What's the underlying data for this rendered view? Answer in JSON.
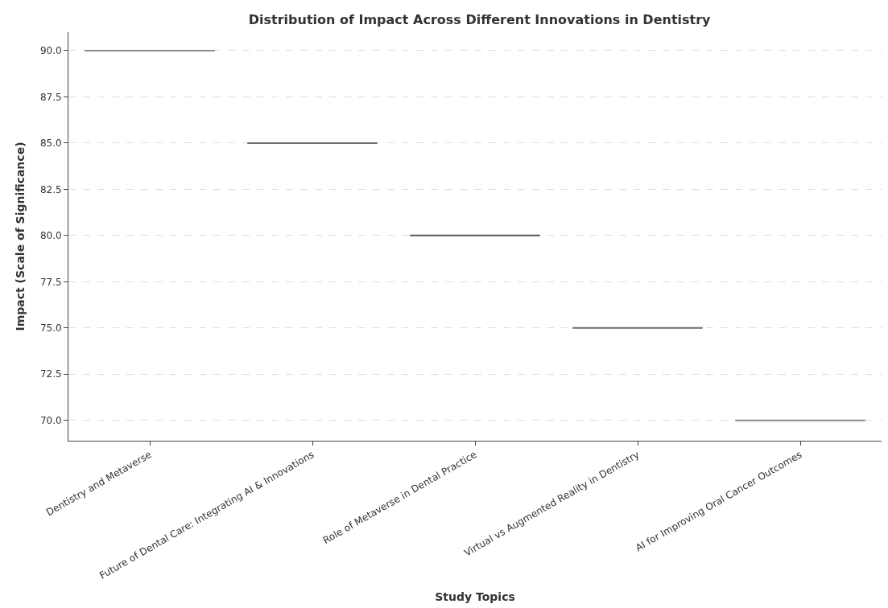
{
  "chart_data": {
    "type": "box",
    "title": "Distribution of Impact Across Different Innovations in Dentistry",
    "xlabel": "Study Topics",
    "ylabel": "Impact (Scale of Significance)",
    "categories": [
      "Dentistry and Metaverse",
      "Future of Dental Care: Integrating AI & Innovations",
      "Role of Metaverse in Dental Practice",
      "Virtual vs Augmented Reality in Dentistry",
      "AI for Improving Oral Cancer Outcomes"
    ],
    "boxes": [
      {
        "low": 90,
        "q1": 90,
        "median": 90,
        "q3": 90,
        "high": 90
      },
      {
        "low": 85,
        "q1": 85,
        "median": 85,
        "q3": 85,
        "high": 85
      },
      {
        "low": 80,
        "q1": 80,
        "median": 80,
        "q3": 80,
        "high": 80
      },
      {
        "low": 75,
        "q1": 75,
        "median": 75,
        "q3": 75,
        "high": 75
      },
      {
        "low": 70,
        "q1": 70,
        "median": 70,
        "q3": 70,
        "high": 70
      }
    ],
    "colors": [
      "#8c8c8c",
      "#6e6e6e",
      "#555555",
      "#6e6e6e",
      "#8c8c8c"
    ],
    "ylim": [
      68.9,
      91.0
    ],
    "yticks": [
      {
        "value": 70,
        "label": "70.0"
      },
      {
        "value": 72.5,
        "label": "72.5"
      },
      {
        "value": 75,
        "label": "75.0"
      },
      {
        "value": 77.5,
        "label": "77.5"
      },
      {
        "value": 80,
        "label": "80.0"
      },
      {
        "value": 82.5,
        "label": "82.5"
      },
      {
        "value": 85,
        "label": "85.0"
      },
      {
        "value": 87.5,
        "label": "87.5"
      },
      {
        "value": 90,
        "label": "90.0"
      }
    ],
    "grid": "y"
  }
}
